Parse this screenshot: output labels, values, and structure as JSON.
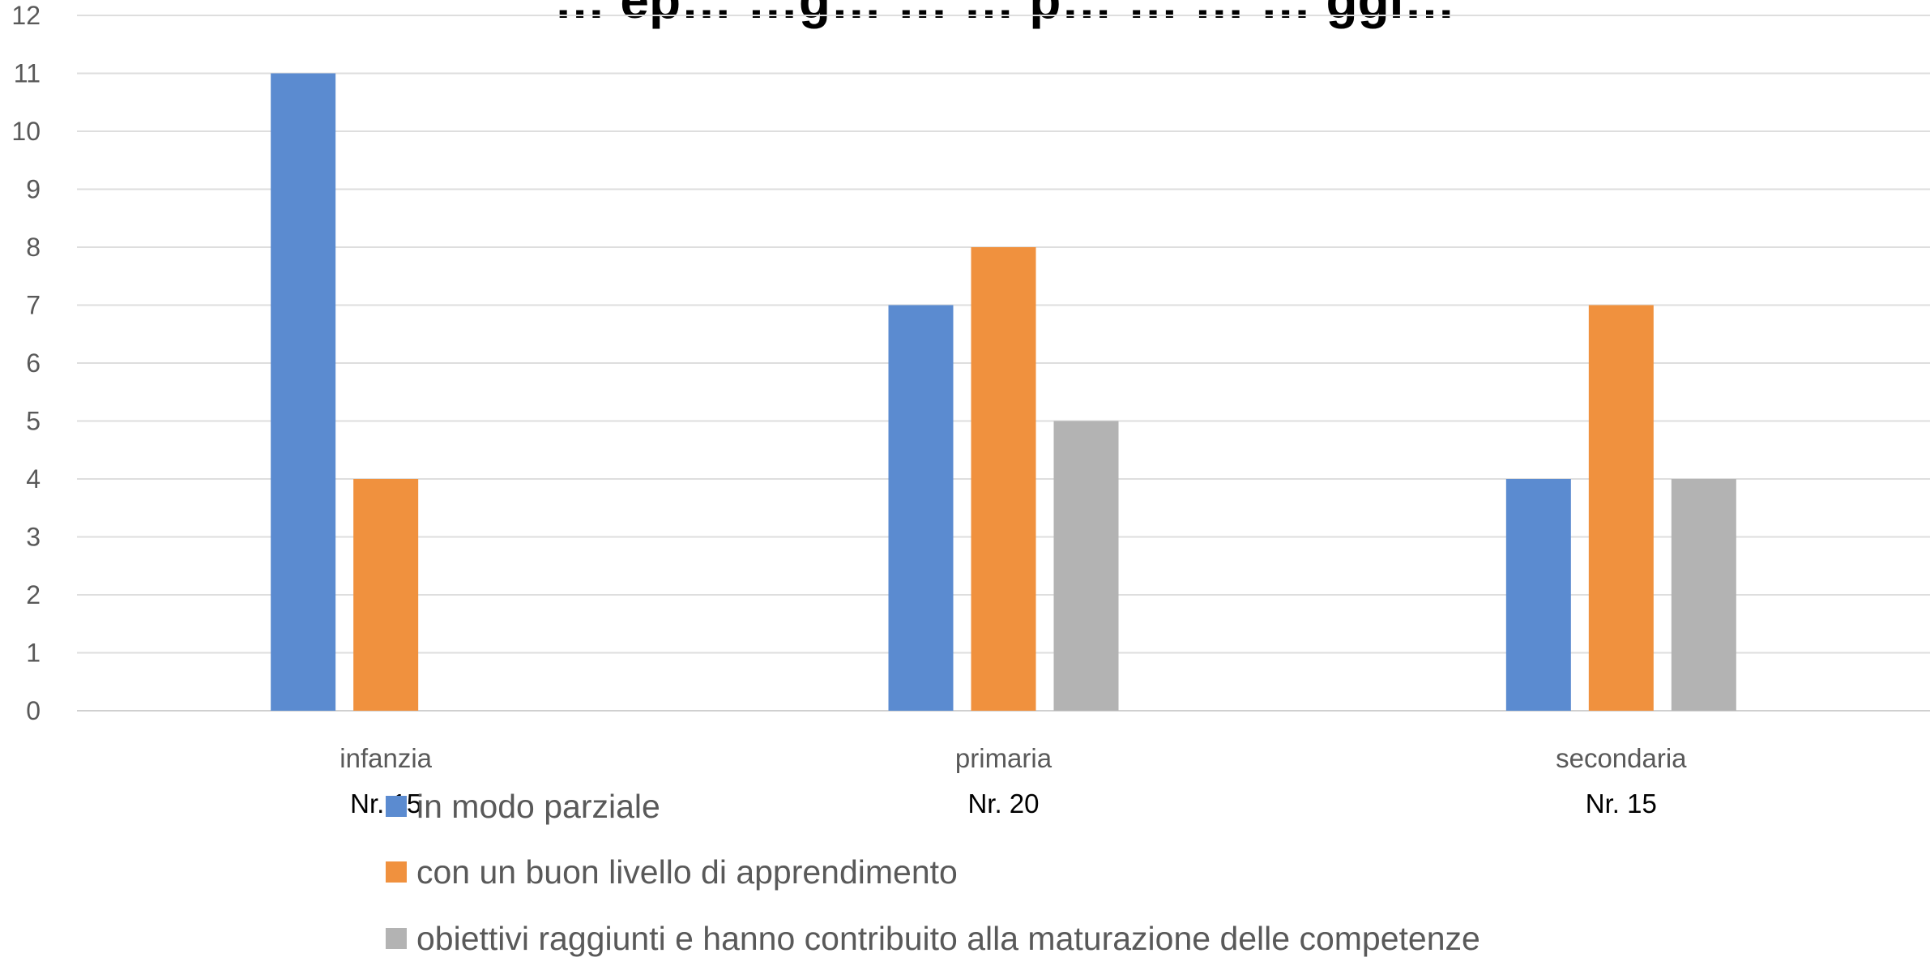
{
  "chart_data": {
    "type": "bar",
    "title": "… ep… …g… … … p… … … … ggi…",
    "categories": [
      "infanzia",
      "primaria",
      "secondaria"
    ],
    "category_counts": [
      "Nr. 15",
      "Nr. 20",
      "Nr. 15"
    ],
    "series": [
      {
        "name": "in modo parziale",
        "color": "#5B8BD0",
        "values": [
          11,
          7,
          4
        ]
      },
      {
        "name": "con un buon livello di apprendimento",
        "color": "#F0913E",
        "values": [
          4,
          8,
          7
        ]
      },
      {
        "name": "obiettivi raggiunti e hanno contribuito alla maturazione delle competenze",
        "color": "#B3B3B3",
        "values": [
          0,
          5,
          4
        ]
      }
    ],
    "ylim": [
      0,
      12
    ],
    "yticks": [
      0,
      1,
      2,
      3,
      4,
      5,
      6,
      7,
      8,
      9,
      10,
      11,
      12
    ],
    "grid": true,
    "legend_position": "bottom-left"
  }
}
